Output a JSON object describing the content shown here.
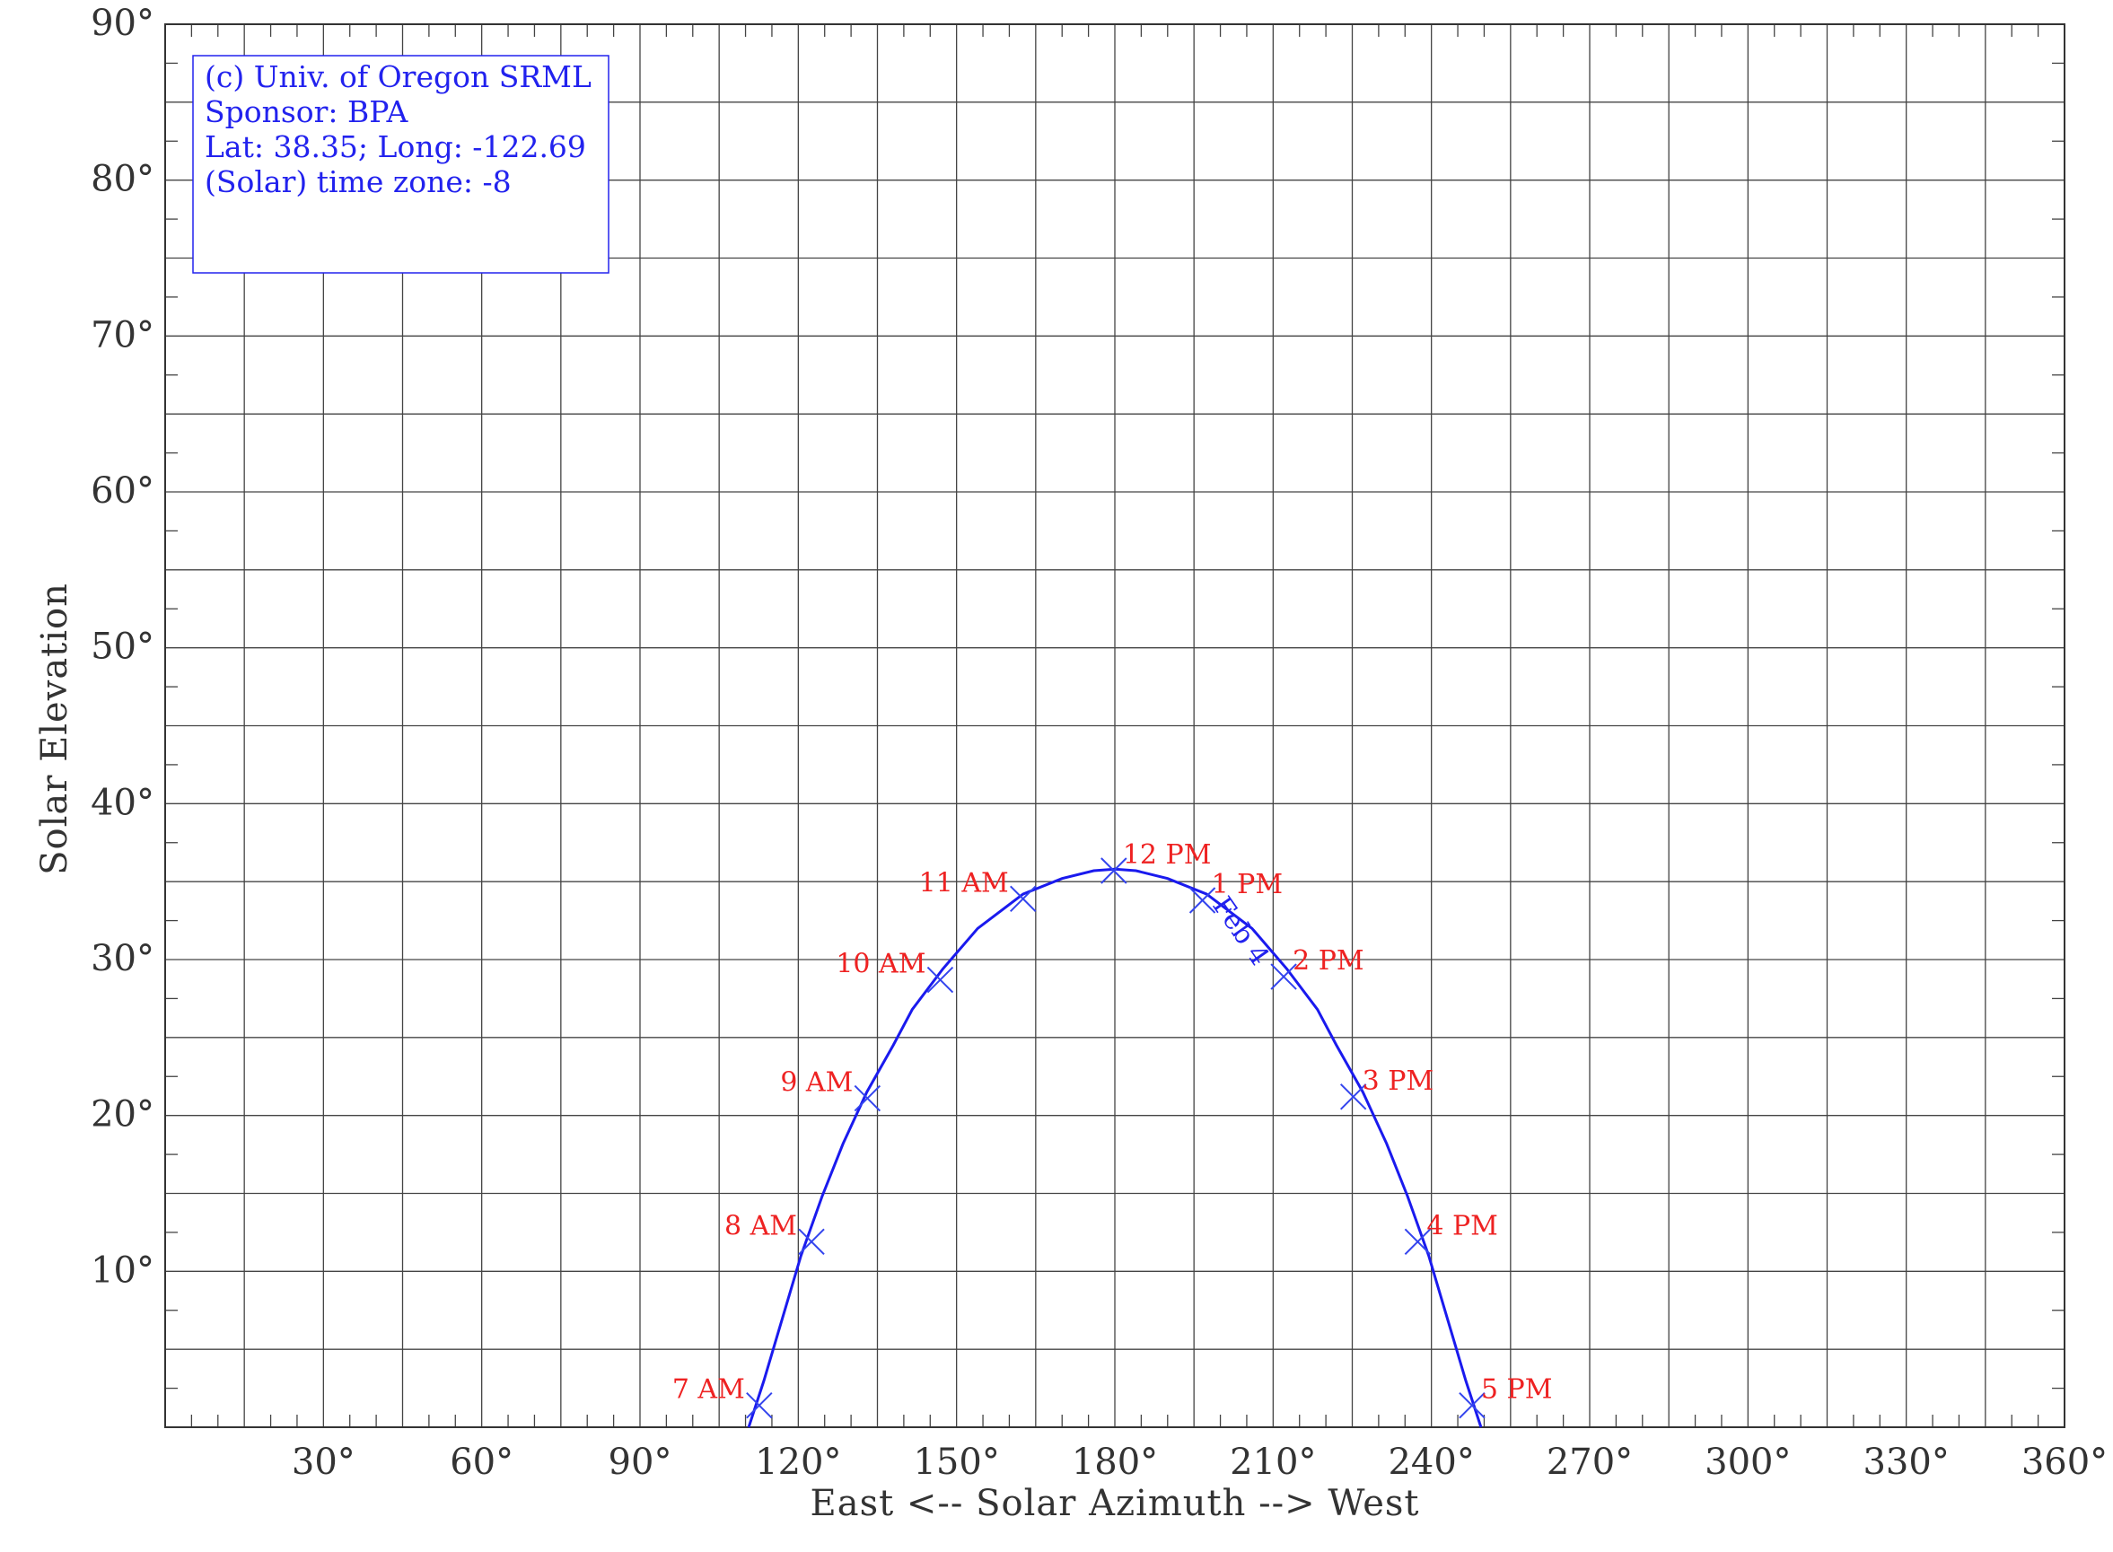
{
  "chart_data": {
    "type": "line",
    "xlabel": "East <-- Solar Azimuth --> West",
    "ylabel": "Solar Elevation",
    "xlim": [
      0,
      360
    ],
    "ylim": [
      0,
      90
    ],
    "x_ticks": [
      {
        "value": 30,
        "label": "30°"
      },
      {
        "value": 60,
        "label": "60°"
      },
      {
        "value": 90,
        "label": "90°"
      },
      {
        "value": 120,
        "label": "120°"
      },
      {
        "value": 150,
        "label": "150°"
      },
      {
        "value": 180,
        "label": "180°"
      },
      {
        "value": 210,
        "label": "210°"
      },
      {
        "value": 240,
        "label": "240°"
      },
      {
        "value": 270,
        "label": "270°"
      },
      {
        "value": 300,
        "label": "300°"
      },
      {
        "value": 330,
        "label": "330°"
      },
      {
        "value": 360,
        "label": "360°"
      }
    ],
    "y_ticks": [
      {
        "value": 10,
        "label": "10°"
      },
      {
        "value": 20,
        "label": "20°"
      },
      {
        "value": 30,
        "label": "30°"
      },
      {
        "value": 40,
        "label": "40°"
      },
      {
        "value": 50,
        "label": "50°"
      },
      {
        "value": 60,
        "label": "60°"
      },
      {
        "value": 70,
        "label": "70°"
      },
      {
        "value": 80,
        "label": "80°"
      },
      {
        "value": 90,
        "label": "90°"
      }
    ],
    "grid": true,
    "series": [
      {
        "name": "Feb 4",
        "color": "#1a1aee",
        "curve": [
          [
            110.6,
            0.0
          ],
          [
            113.5,
            3.0
          ],
          [
            117.0,
            7.0
          ],
          [
            120.5,
            11.0
          ],
          [
            124.5,
            14.8
          ],
          [
            128.5,
            18.2
          ],
          [
            133.0,
            21.5
          ],
          [
            138.0,
            24.5
          ],
          [
            141.6,
            26.8
          ],
          [
            147.4,
            29.4
          ],
          [
            154.0,
            32.0
          ],
          [
            162.6,
            34.2
          ],
          [
            170.0,
            35.2
          ],
          [
            176.0,
            35.7
          ],
          [
            180.0,
            35.8
          ],
          [
            184.0,
            35.7
          ],
          [
            190.0,
            35.2
          ],
          [
            197.4,
            34.2
          ],
          [
            206.0,
            32.0
          ],
          [
            212.6,
            29.4
          ],
          [
            218.4,
            26.8
          ],
          [
            222.0,
            24.5
          ],
          [
            227.0,
            21.5
          ],
          [
            231.5,
            18.2
          ],
          [
            235.5,
            14.8
          ],
          [
            239.5,
            11.0
          ],
          [
            243.0,
            7.0
          ],
          [
            246.5,
            3.0
          ],
          [
            249.4,
            0.0
          ]
        ],
        "hour_markers": [
          {
            "label": "7 AM",
            "azimuth": 112.6,
            "elevation": 1.4
          },
          {
            "label": "8 AM",
            "azimuth": 122.5,
            "elevation": 11.9
          },
          {
            "label": "9 AM",
            "azimuth": 133.1,
            "elevation": 21.1
          },
          {
            "label": "10 AM",
            "azimuth": 146.9,
            "elevation": 28.7
          },
          {
            "label": "11 AM",
            "azimuth": 162.6,
            "elevation": 33.9
          },
          {
            "label": "12 PM",
            "azimuth": 179.8,
            "elevation": 35.7
          },
          {
            "label": "1 PM",
            "azimuth": 196.6,
            "elevation": 33.8
          },
          {
            "label": "2 PM",
            "azimuth": 212.0,
            "elevation": 28.9
          },
          {
            "label": "3 PM",
            "azimuth": 225.2,
            "elevation": 21.2
          },
          {
            "label": "4 PM",
            "azimuth": 237.4,
            "elevation": 11.9
          },
          {
            "label": "5 PM",
            "azimuth": 247.7,
            "elevation": 1.4
          }
        ]
      }
    ],
    "curve_label": {
      "text": "Feb 4",
      "azimuth": 202.5,
      "elevation": 31.5,
      "angle": 55
    },
    "info_box": {
      "lines": [
        "(c) Univ. of Oregon SRML",
        "Sponsor: BPA",
        "Lat: 38.35; Long: -122.69",
        "(Solar) time zone: -8"
      ]
    }
  }
}
